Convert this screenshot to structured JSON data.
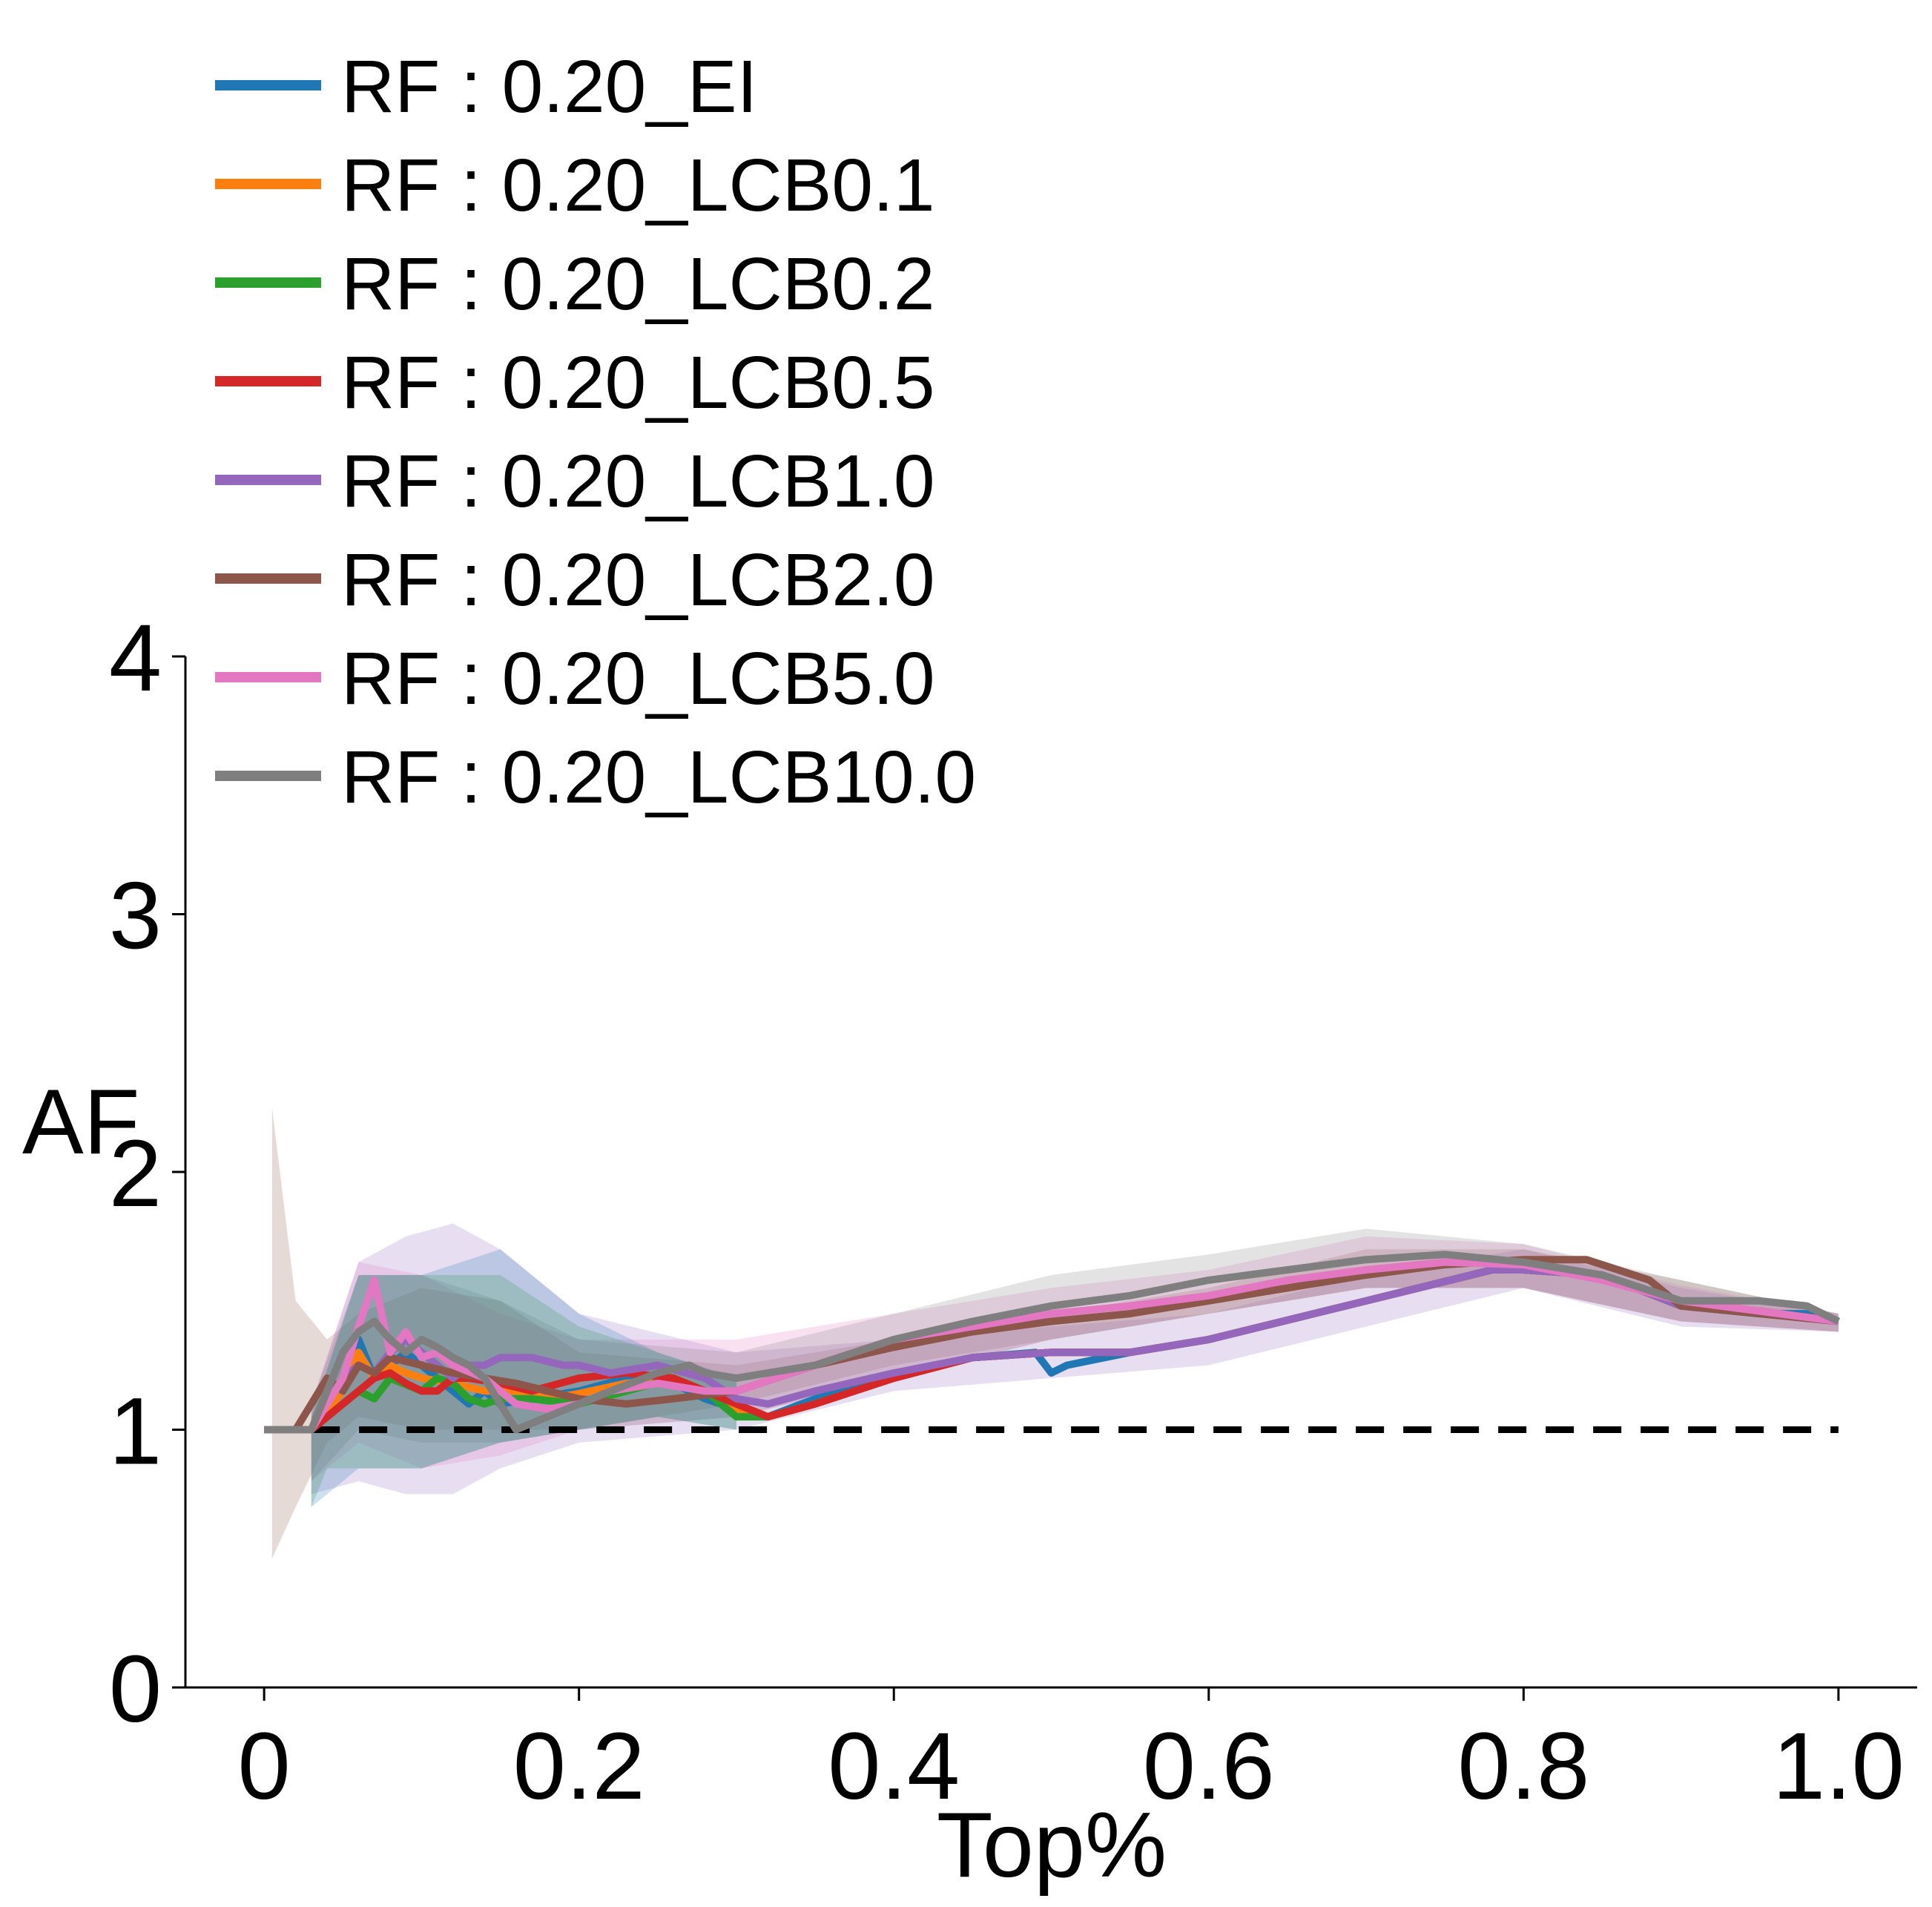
{
  "chart_data": {
    "type": "line",
    "xlabel": "Top%",
    "ylabel": "AF",
    "xlim": [
      -0.05,
      1.05
    ],
    "ylim": [
      0,
      4
    ],
    "xticks": [
      0,
      0.2,
      0.4,
      0.6,
      0.8,
      1.0
    ],
    "xtick_labels": [
      "0",
      "0.2",
      "0.4",
      "0.6",
      "0.8",
      "1.0"
    ],
    "yticks": [
      0,
      1,
      2,
      3,
      4
    ],
    "ytick_labels": [
      "0",
      "1",
      "2",
      "3",
      "4"
    ],
    "grid": false,
    "legend_position": "top-left",
    "baseline": {
      "y": 1,
      "x": [
        0,
        1
      ],
      "style": "dashed",
      "color": "#000000"
    },
    "bands": [
      {
        "color": "#8c564b",
        "upper": [
          [
            0.005,
            2.25
          ],
          [
            0.02,
            1.5
          ],
          [
            0.04,
            1.35
          ],
          [
            0.06,
            1.45
          ],
          [
            0.1,
            1.55
          ],
          [
            0.15,
            1.5
          ],
          [
            0.2,
            1.3
          ],
          [
            0.3,
            1.25
          ],
          [
            0.4,
            1.35
          ],
          [
            0.5,
            1.45
          ],
          [
            0.6,
            1.55
          ],
          [
            0.7,
            1.7
          ],
          [
            0.8,
            1.7
          ],
          [
            0.9,
            1.58
          ],
          [
            1.0,
            1.45
          ]
        ],
        "lower": [
          [
            0.005,
            0.5
          ],
          [
            0.02,
            0.7
          ],
          [
            0.04,
            0.95
          ],
          [
            0.06,
            1.05
          ],
          [
            0.1,
            1.0
          ],
          [
            0.15,
            1.0
          ],
          [
            0.2,
            1.0
          ],
          [
            0.3,
            1.1
          ],
          [
            0.4,
            1.25
          ],
          [
            0.5,
            1.35
          ],
          [
            0.6,
            1.45
          ],
          [
            0.7,
            1.55
          ],
          [
            0.8,
            1.55
          ],
          [
            0.9,
            1.42
          ],
          [
            1.0,
            1.38
          ]
        ]
      },
      {
        "color": "#9467bd",
        "upper": [
          [
            0.03,
            1.1
          ],
          [
            0.06,
            1.65
          ],
          [
            0.09,
            1.75
          ],
          [
            0.12,
            1.8
          ],
          [
            0.15,
            1.7
          ],
          [
            0.2,
            1.45
          ],
          [
            0.3,
            1.3
          ],
          [
            0.4,
            1.35
          ],
          [
            0.5,
            1.4
          ],
          [
            0.6,
            1.45
          ],
          [
            0.7,
            1.6
          ],
          [
            0.8,
            1.7
          ],
          [
            0.9,
            1.55
          ],
          [
            1.0,
            1.45
          ]
        ],
        "lower": [
          [
            0.03,
            0.75
          ],
          [
            0.06,
            0.8
          ],
          [
            0.09,
            0.75
          ],
          [
            0.12,
            0.75
          ],
          [
            0.15,
            0.85
          ],
          [
            0.2,
            0.95
          ],
          [
            0.3,
            1.0
          ],
          [
            0.4,
            1.15
          ],
          [
            0.5,
            1.2
          ],
          [
            0.6,
            1.25
          ],
          [
            0.7,
            1.4
          ],
          [
            0.8,
            1.55
          ],
          [
            0.9,
            1.4
          ],
          [
            1.0,
            1.38
          ]
        ]
      },
      {
        "color": "#e377c2",
        "upper": [
          [
            0.03,
            1.1
          ],
          [
            0.06,
            1.65
          ],
          [
            0.1,
            1.6
          ],
          [
            0.15,
            1.45
          ],
          [
            0.2,
            1.35
          ],
          [
            0.3,
            1.35
          ],
          [
            0.4,
            1.45
          ],
          [
            0.5,
            1.55
          ],
          [
            0.6,
            1.62
          ],
          [
            0.7,
            1.75
          ],
          [
            0.8,
            1.72
          ],
          [
            0.9,
            1.56
          ],
          [
            1.0,
            1.45
          ]
        ],
        "lower": [
          [
            0.03,
            0.8
          ],
          [
            0.06,
            0.95
          ],
          [
            0.1,
            0.85
          ],
          [
            0.15,
            0.9
          ],
          [
            0.2,
            1.0
          ],
          [
            0.3,
            1.05
          ],
          [
            0.4,
            1.2
          ],
          [
            0.5,
            1.35
          ],
          [
            0.6,
            1.45
          ],
          [
            0.7,
            1.55
          ],
          [
            0.8,
            1.55
          ],
          [
            0.9,
            1.42
          ],
          [
            1.0,
            1.38
          ]
        ]
      },
      {
        "color": "#7f7f7f",
        "upper": [
          [
            0.03,
            1.1
          ],
          [
            0.06,
            1.6
          ],
          [
            0.1,
            1.6
          ],
          [
            0.15,
            1.5
          ],
          [
            0.2,
            1.35
          ],
          [
            0.3,
            1.3
          ],
          [
            0.4,
            1.45
          ],
          [
            0.5,
            1.6
          ],
          [
            0.6,
            1.68
          ],
          [
            0.7,
            1.78
          ],
          [
            0.8,
            1.72
          ],
          [
            0.9,
            1.58
          ],
          [
            1.0,
            1.45
          ]
        ],
        "lower": [
          [
            0.03,
            0.8
          ],
          [
            0.06,
            1.0
          ],
          [
            0.1,
            0.95
          ],
          [
            0.15,
            0.95
          ],
          [
            0.2,
            1.0
          ],
          [
            0.3,
            1.05
          ],
          [
            0.4,
            1.2
          ],
          [
            0.5,
            1.35
          ],
          [
            0.6,
            1.45
          ],
          [
            0.7,
            1.55
          ],
          [
            0.8,
            1.55
          ],
          [
            0.9,
            1.42
          ],
          [
            1.0,
            1.38
          ]
        ]
      },
      {
        "color": "#2ca02c",
        "upper": [
          [
            0.03,
            1.05
          ],
          [
            0.06,
            1.6
          ],
          [
            0.1,
            1.6
          ],
          [
            0.15,
            1.6
          ],
          [
            0.2,
            1.4
          ],
          [
            0.25,
            1.3
          ],
          [
            0.3,
            1.2
          ]
        ],
        "lower": [
          [
            0.03,
            0.7
          ],
          [
            0.04,
            0.85
          ],
          [
            0.06,
            0.85
          ],
          [
            0.1,
            0.85
          ],
          [
            0.15,
            0.95
          ],
          [
            0.2,
            1.0
          ],
          [
            0.25,
            1.05
          ],
          [
            0.3,
            1.0
          ]
        ]
      },
      {
        "color": "#1f77b4",
        "upper": [
          [
            0.03,
            1.05
          ],
          [
            0.06,
            1.6
          ],
          [
            0.1,
            1.6
          ],
          [
            0.15,
            1.7
          ],
          [
            0.2,
            1.45
          ],
          [
            0.25,
            1.3
          ],
          [
            0.3,
            1.2
          ]
        ],
        "lower": [
          [
            0.03,
            0.7
          ],
          [
            0.05,
            0.8
          ],
          [
            0.06,
            0.85
          ],
          [
            0.1,
            0.85
          ],
          [
            0.15,
            0.95
          ],
          [
            0.2,
            1.0
          ],
          [
            0.25,
            1.05
          ],
          [
            0.3,
            1.0
          ]
        ]
      }
    ],
    "series": [
      {
        "name": "RF : 0.20_EI",
        "color": "#1f77b4",
        "x": [
          0.0,
          0.03,
          0.05,
          0.06,
          0.07,
          0.08,
          0.09,
          0.1,
          0.11,
          0.12,
          0.13,
          0.14,
          0.15,
          0.17,
          0.2,
          0.23,
          0.26,
          0.28,
          0.3,
          0.32,
          0.35,
          0.4,
          0.45,
          0.49,
          0.5,
          0.51,
          0.55,
          0.6,
          0.7,
          0.78,
          0.8,
          0.85,
          0.9,
          0.95,
          0.98,
          1.0
        ],
        "y": [
          1.0,
          1.0,
          1.15,
          1.35,
          1.2,
          1.25,
          1.3,
          1.25,
          1.2,
          1.15,
          1.1,
          1.15,
          1.1,
          1.12,
          1.15,
          1.2,
          1.18,
          1.12,
          1.08,
          1.05,
          1.12,
          1.2,
          1.28,
          1.3,
          1.22,
          1.25,
          1.3,
          1.35,
          1.5,
          1.62,
          1.62,
          1.6,
          1.48,
          1.45,
          1.45,
          1.42
        ]
      },
      {
        "name": "RF : 0.20_LCB0.1",
        "color": "#ff7f0e",
        "x": [
          0.0,
          0.03,
          0.05,
          0.06,
          0.07,
          0.08,
          0.09,
          0.1,
          0.12,
          0.14,
          0.16,
          0.18,
          0.2,
          0.23,
          0.26,
          0.28,
          0.3,
          0.32,
          0.35,
          0.4,
          0.45,
          0.5,
          0.55,
          0.6,
          0.7,
          0.78,
          0.8,
          0.85,
          0.9,
          0.95,
          1.0
        ],
        "y": [
          1.0,
          1.0,
          1.15,
          1.3,
          1.2,
          1.25,
          1.22,
          1.2,
          1.18,
          1.15,
          1.15,
          1.12,
          1.14,
          1.18,
          1.2,
          1.15,
          1.08,
          1.05,
          1.1,
          1.2,
          1.28,
          1.3,
          1.3,
          1.35,
          1.5,
          1.62,
          1.62,
          1.6,
          1.48,
          1.46,
          1.42
        ]
      },
      {
        "name": "RF : 0.20_LCB0.2",
        "color": "#2ca02c",
        "x": [
          0.0,
          0.03,
          0.05,
          0.06,
          0.07,
          0.08,
          0.1,
          0.11,
          0.12,
          0.13,
          0.14,
          0.15,
          0.17,
          0.2,
          0.23,
          0.26,
          0.28,
          0.3,
          0.32,
          0.35,
          0.4,
          0.45,
          0.5,
          0.55,
          0.6,
          0.7,
          0.78,
          0.8,
          0.85,
          0.9,
          0.95,
          1.0
        ],
        "y": [
          1.0,
          1.0,
          1.1,
          1.15,
          1.12,
          1.2,
          1.15,
          1.2,
          1.18,
          1.12,
          1.1,
          1.12,
          1.12,
          1.1,
          1.15,
          1.2,
          1.15,
          1.05,
          1.05,
          1.1,
          1.2,
          1.28,
          1.3,
          1.3,
          1.35,
          1.5,
          1.62,
          1.62,
          1.6,
          1.48,
          1.46,
          1.42
        ]
      },
      {
        "name": "RF : 0.20_LCB0.5",
        "color": "#d62728",
        "x": [
          0.0,
          0.03,
          0.05,
          0.06,
          0.07,
          0.08,
          0.09,
          0.1,
          0.11,
          0.12,
          0.13,
          0.15,
          0.17,
          0.2,
          0.23,
          0.26,
          0.28,
          0.3,
          0.32,
          0.35,
          0.4,
          0.45,
          0.5,
          0.55,
          0.6,
          0.7,
          0.78,
          0.8,
          0.85,
          0.9,
          0.95,
          1.0
        ],
        "y": [
          1.0,
          1.0,
          1.1,
          1.15,
          1.2,
          1.22,
          1.18,
          1.15,
          1.15,
          1.2,
          1.2,
          1.18,
          1.15,
          1.2,
          1.22,
          1.2,
          1.15,
          1.1,
          1.05,
          1.1,
          1.2,
          1.28,
          1.3,
          1.3,
          1.35,
          1.5,
          1.62,
          1.62,
          1.6,
          1.48,
          1.46,
          1.42
        ]
      },
      {
        "name": "RF : 0.20_LCB1.0",
        "color": "#9467bd",
        "x": [
          0.0,
          0.03,
          0.05,
          0.06,
          0.07,
          0.08,
          0.09,
          0.1,
          0.11,
          0.12,
          0.13,
          0.14,
          0.15,
          0.17,
          0.19,
          0.2,
          0.22,
          0.25,
          0.28,
          0.3,
          0.32,
          0.35,
          0.4,
          0.45,
          0.5,
          0.55,
          0.6,
          0.7,
          0.78,
          0.8,
          0.85,
          0.9,
          0.95,
          1.0
        ],
        "y": [
          1.0,
          1.0,
          1.2,
          1.25,
          1.22,
          1.3,
          1.35,
          1.3,
          1.25,
          1.2,
          1.25,
          1.25,
          1.28,
          1.28,
          1.25,
          1.25,
          1.22,
          1.25,
          1.2,
          1.12,
          1.1,
          1.15,
          1.22,
          1.28,
          1.3,
          1.3,
          1.35,
          1.5,
          1.62,
          1.62,
          1.6,
          1.48,
          1.45,
          1.42
        ]
      },
      {
        "name": "RF : 0.20_LCB2.0",
        "color": "#8c564b",
        "x": [
          0.0,
          0.02,
          0.04,
          0.05,
          0.06,
          0.07,
          0.08,
          0.1,
          0.12,
          0.14,
          0.16,
          0.18,
          0.2,
          0.23,
          0.26,
          0.3,
          0.35,
          0.4,
          0.45,
          0.5,
          0.55,
          0.6,
          0.65,
          0.7,
          0.75,
          0.8,
          0.84,
          0.86,
          0.88,
          0.9,
          0.95,
          1.0
        ],
        "y": [
          1.0,
          1.0,
          1.2,
          1.15,
          1.25,
          1.22,
          1.28,
          1.25,
          1.22,
          1.2,
          1.18,
          1.15,
          1.12,
          1.1,
          1.12,
          1.15,
          1.25,
          1.32,
          1.38,
          1.42,
          1.45,
          1.5,
          1.55,
          1.6,
          1.64,
          1.66,
          1.66,
          1.62,
          1.58,
          1.48,
          1.45,
          1.42
        ]
      },
      {
        "name": "RF : 0.20_LCB5.0",
        "color": "#e377c2",
        "x": [
          0.0,
          0.03,
          0.05,
          0.06,
          0.07,
          0.08,
          0.09,
          0.1,
          0.11,
          0.12,
          0.14,
          0.16,
          0.18,
          0.2,
          0.22,
          0.25,
          0.28,
          0.3,
          0.35,
          0.4,
          0.45,
          0.5,
          0.55,
          0.6,
          0.65,
          0.7,
          0.75,
          0.8,
          0.85,
          0.9,
          0.95,
          1.0
        ],
        "y": [
          1.0,
          1.0,
          1.2,
          1.4,
          1.58,
          1.3,
          1.38,
          1.28,
          1.3,
          1.25,
          1.2,
          1.1,
          1.08,
          1.1,
          1.15,
          1.18,
          1.15,
          1.15,
          1.25,
          1.35,
          1.4,
          1.45,
          1.48,
          1.52,
          1.58,
          1.62,
          1.65,
          1.64,
          1.58,
          1.5,
          1.46,
          1.42
        ]
      },
      {
        "name": "RF : 0.20_LCB10.0",
        "color": "#7f7f7f",
        "x": [
          0.0,
          0.03,
          0.05,
          0.06,
          0.07,
          0.08,
          0.09,
          0.1,
          0.11,
          0.12,
          0.13,
          0.14,
          0.15,
          0.16,
          0.18,
          0.2,
          0.22,
          0.25,
          0.27,
          0.28,
          0.3,
          0.35,
          0.4,
          0.45,
          0.5,
          0.55,
          0.6,
          0.65,
          0.7,
          0.75,
          0.8,
          0.85,
          0.9,
          0.95,
          0.98,
          1.0
        ],
        "y": [
          1.0,
          1.0,
          1.3,
          1.38,
          1.42,
          1.35,
          1.3,
          1.35,
          1.32,
          1.28,
          1.25,
          1.2,
          1.1,
          1.0,
          1.05,
          1.1,
          1.15,
          1.22,
          1.25,
          1.22,
          1.2,
          1.25,
          1.35,
          1.42,
          1.48,
          1.52,
          1.58,
          1.62,
          1.66,
          1.68,
          1.65,
          1.6,
          1.5,
          1.5,
          1.48,
          1.42
        ]
      }
    ]
  }
}
